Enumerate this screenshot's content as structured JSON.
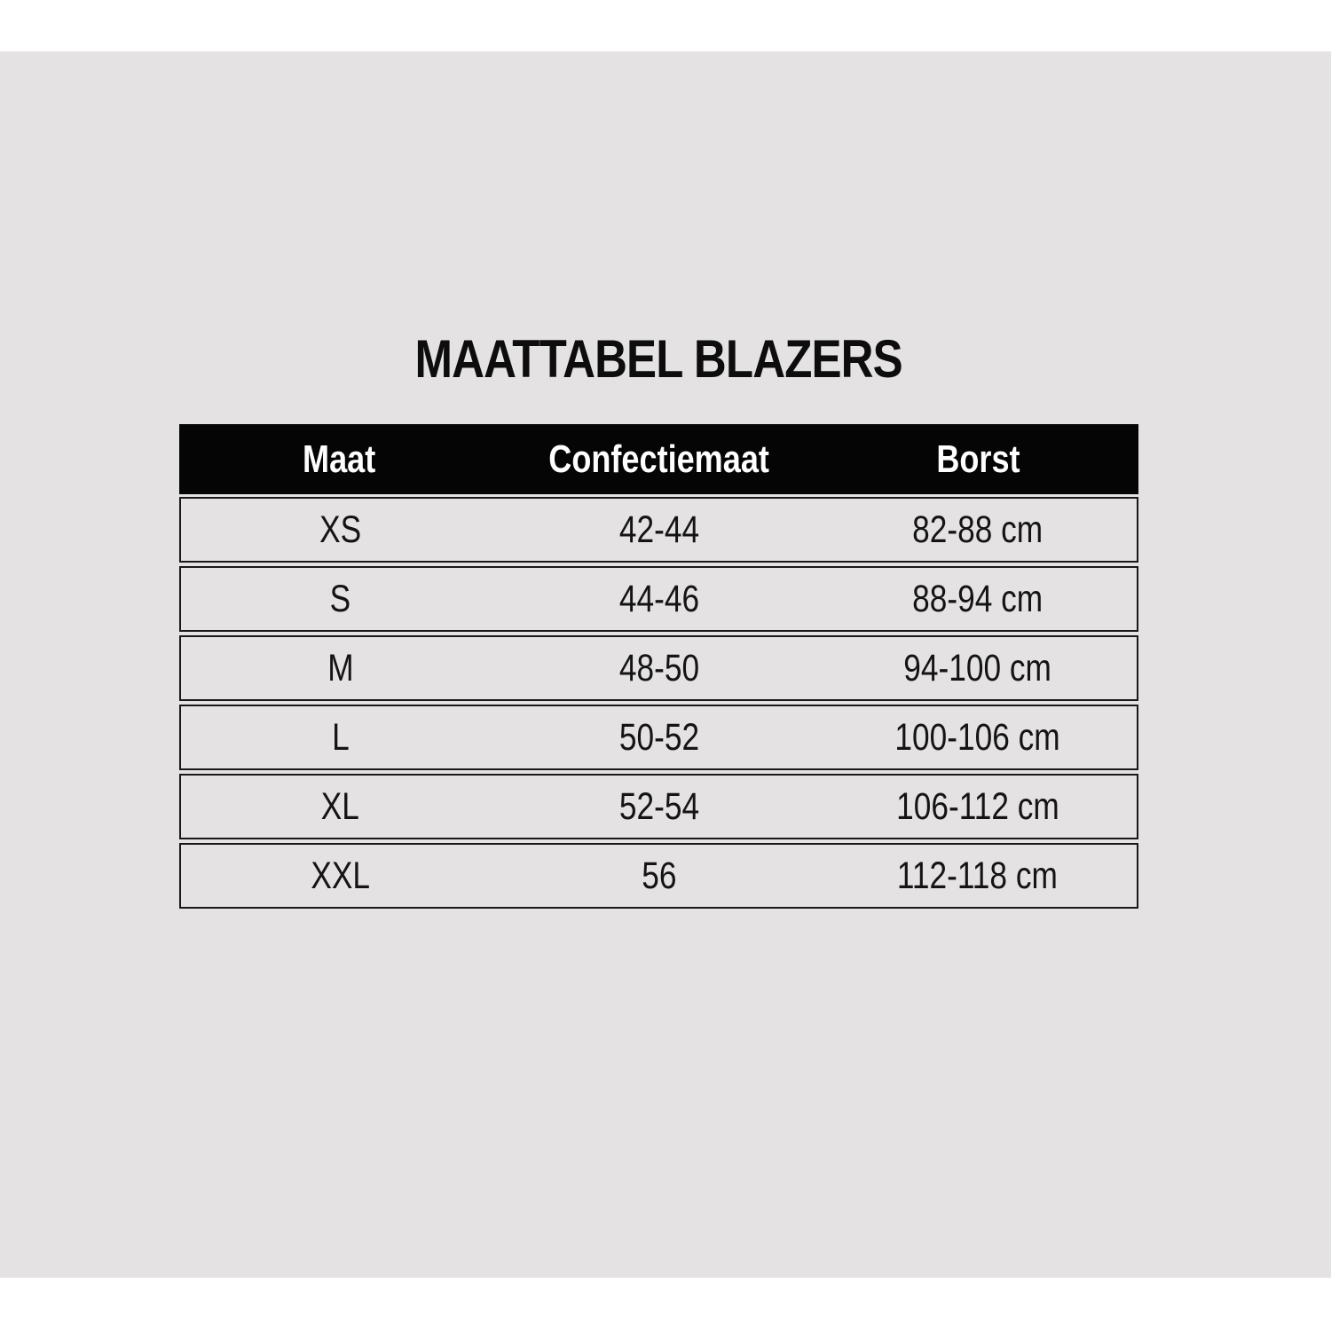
{
  "title": "MAATTABEL BLAZERS",
  "chart_data": {
    "type": "table",
    "title": "MAATTABEL BLAZERS",
    "columns": [
      "Maat",
      "Confectiemaat",
      "Borst"
    ],
    "rows": [
      [
        "XS",
        "42-44",
        "82-88 cm"
      ],
      [
        "S",
        "44-46",
        "88-94 cm"
      ],
      [
        "M",
        "48-50",
        "94-100 cm"
      ],
      [
        "L",
        "50-52",
        "100-106 cm"
      ],
      [
        "XL",
        "52-54",
        "106-112 cm"
      ],
      [
        "XXL",
        "56",
        "112-118 cm"
      ]
    ],
    "layout": {
      "header_position": "top",
      "column_alignment": "center"
    }
  },
  "colors": {
    "page_background": "#ffffff",
    "panel_background": "#e4e2e2",
    "header_background": "#050505",
    "header_text": "#ffffff",
    "body_text": "#141414",
    "row_border": "#191919"
  }
}
